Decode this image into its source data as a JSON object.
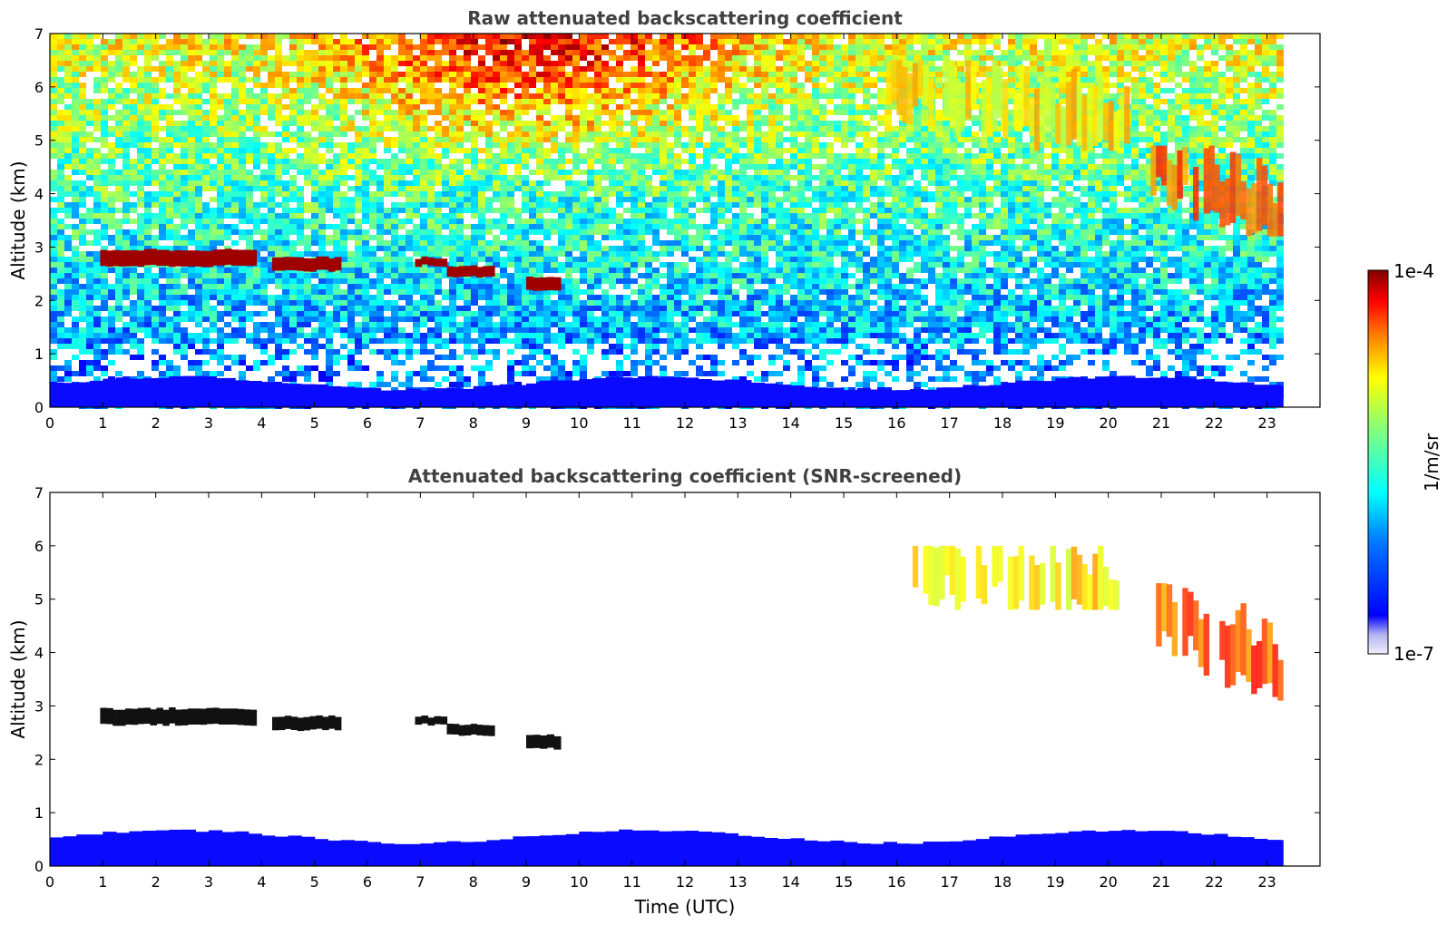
{
  "figure": {
    "xlabel": "Time (UTC)",
    "colorbar": {
      "label": "1/m/sr",
      "min_label": "1e-7",
      "max_label": "1e-4",
      "scale": "log"
    }
  },
  "colors": {
    "jet": [
      "#00007f",
      "#0000ff",
      "#007fff",
      "#00ffff",
      "#7fff7f",
      "#ffff00",
      "#ff7f00",
      "#ff0000",
      "#7f0000"
    ],
    "low_end": [
      "#ffffff",
      "#dcdcf5",
      "#b4b4f0"
    ]
  },
  "chart_data": [
    {
      "type": "heatmap",
      "title": "Raw attenuated backscattering coefficient",
      "xlabel": "",
      "ylabel": "Altitude (km)",
      "xlim": [
        0,
        24
      ],
      "ylim": [
        0,
        7
      ],
      "x_ticks": [
        "0",
        "1",
        "2",
        "3",
        "4",
        "5",
        "6",
        "7",
        "8",
        "9",
        "10",
        "11",
        "12",
        "13",
        "14",
        "15",
        "16",
        "17",
        "18",
        "19",
        "20",
        "21",
        "22",
        "23"
      ],
      "y_ticks": [
        "0",
        "1",
        "2",
        "3",
        "4",
        "5",
        "6",
        "7"
      ],
      "data_end_time": 23.3,
      "features": [
        {
          "kind": "surface-layer",
          "t0": 0,
          "t1": 23.3,
          "z_top": 0.45,
          "level": "low"
        },
        {
          "kind": "cloud",
          "t0": 0.95,
          "t1": 3.9,
          "z0": 2.65,
          "z1": 2.95,
          "level": "max"
        },
        {
          "kind": "cloud",
          "t0": 4.2,
          "t1": 5.5,
          "z0": 2.55,
          "z1": 2.8,
          "level": "max"
        },
        {
          "kind": "cloud",
          "t0": 6.9,
          "t1": 7.5,
          "z0": 2.65,
          "z1": 2.8,
          "level": "max"
        },
        {
          "kind": "cloud",
          "t0": 7.5,
          "t1": 8.4,
          "z0": 2.45,
          "z1": 2.65,
          "level": "max"
        },
        {
          "kind": "cloud",
          "t0": 9.0,
          "t1": 9.65,
          "z0": 2.2,
          "z1": 2.45,
          "level": "max"
        },
        {
          "kind": "cirrus",
          "t0": 15.8,
          "t1": 20.4,
          "z0": 4.8,
          "z1": 6.5,
          "level": "mid"
        },
        {
          "kind": "cirrus",
          "t0": 20.8,
          "t1": 23.3,
          "z0": 3.2,
          "z1": 4.9,
          "level": "high"
        }
      ]
    },
    {
      "type": "heatmap",
      "title": "Attenuated backscattering coefficient (SNR-screened)",
      "xlabel": "Time (UTC)",
      "ylabel": "Altitude (km)",
      "xlim": [
        0,
        24
      ],
      "ylim": [
        0,
        7
      ],
      "x_ticks": [
        "0",
        "1",
        "2",
        "3",
        "4",
        "5",
        "6",
        "7",
        "8",
        "9",
        "10",
        "11",
        "12",
        "13",
        "14",
        "15",
        "16",
        "17",
        "18",
        "19",
        "20",
        "21",
        "22",
        "23"
      ],
      "y_ticks": [
        "0",
        "1",
        "2",
        "3",
        "4",
        "5",
        "6",
        "7"
      ],
      "data_end_time": 23.3,
      "features": [
        {
          "kind": "surface-layer",
          "t0": 0,
          "t1": 23.3,
          "z_top": 0.55,
          "level": "low"
        },
        {
          "kind": "cloud",
          "t0": 0.95,
          "t1": 3.9,
          "z0": 2.65,
          "z1": 2.95,
          "level": "saturated"
        },
        {
          "kind": "cloud",
          "t0": 4.2,
          "t1": 5.5,
          "z0": 2.55,
          "z1": 2.8,
          "level": "saturated"
        },
        {
          "kind": "cloud",
          "t0": 6.9,
          "t1": 7.5,
          "z0": 2.65,
          "z1": 2.8,
          "level": "saturated"
        },
        {
          "kind": "cloud",
          "t0": 7.5,
          "t1": 8.4,
          "z0": 2.45,
          "z1": 2.65,
          "level": "saturated"
        },
        {
          "kind": "cloud",
          "t0": 9.0,
          "t1": 9.65,
          "z0": 2.2,
          "z1": 2.45,
          "level": "saturated"
        },
        {
          "kind": "cirrus",
          "t0": 16.3,
          "t1": 20.3,
          "z0": 4.8,
          "z1": 6.0,
          "level": "mid"
        },
        {
          "kind": "cirrus",
          "t0": 20.9,
          "t1": 23.3,
          "z0": 3.1,
          "z1": 5.3,
          "level": "high"
        }
      ]
    }
  ]
}
